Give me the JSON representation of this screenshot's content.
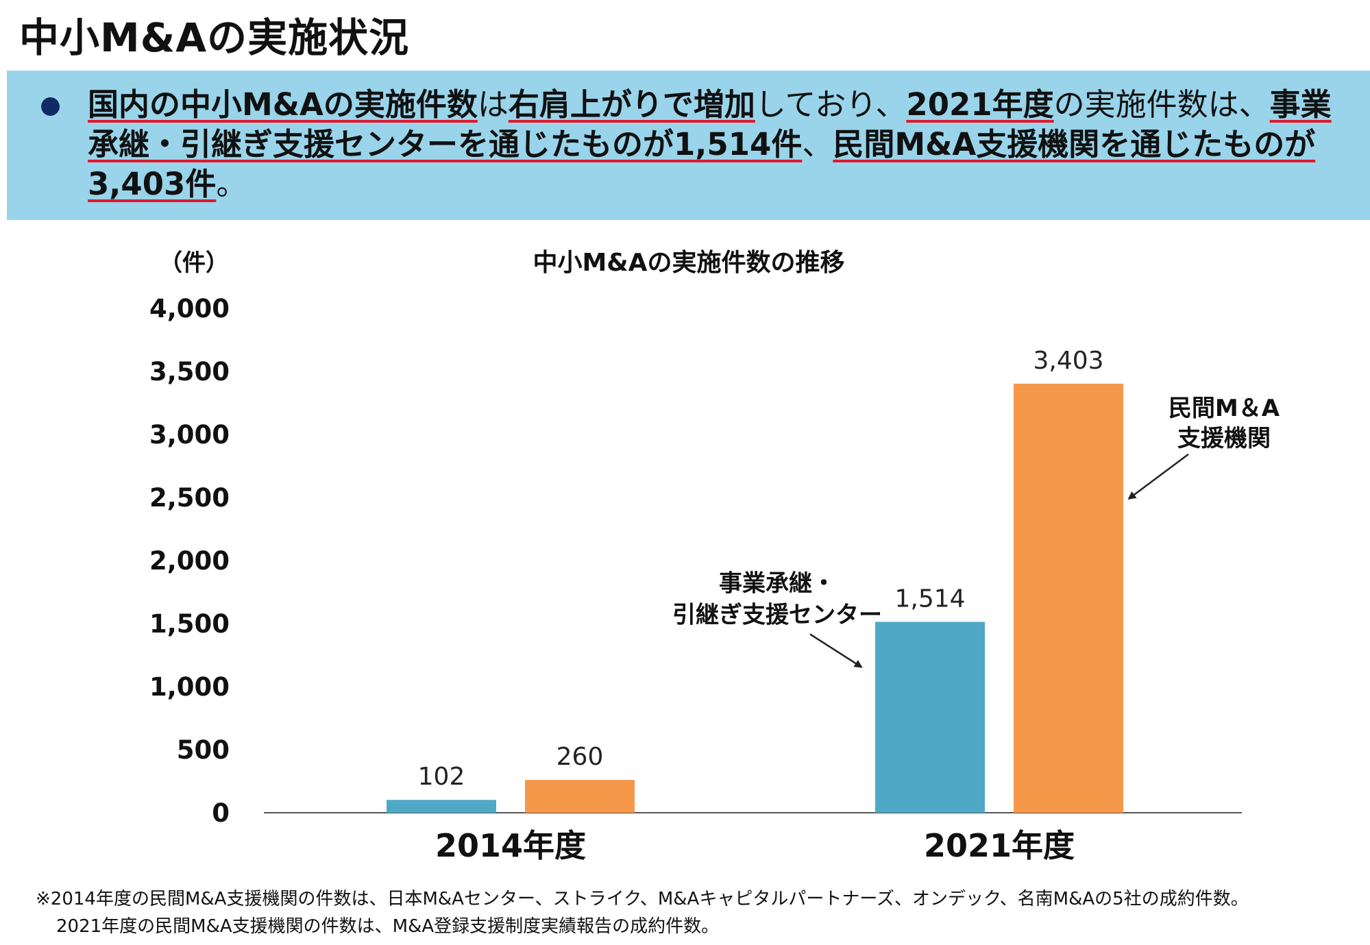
{
  "page": {
    "title": "中小M&Aの実施状況"
  },
  "summary": {
    "parts": [
      {
        "text": "国内の中小M&Aの実施件数",
        "emphasis": true
      },
      {
        "text": "は",
        "emphasis": false
      },
      {
        "text": "右肩上がりで増加",
        "emphasis": true
      },
      {
        "text": "しており、",
        "emphasis": false
      },
      {
        "text": "2021年度",
        "emphasis": true
      },
      {
        "text": "の実施件数は、",
        "emphasis": false
      },
      {
        "text": "事業承継・引継ぎ支援センターを通じたものが1,514件",
        "emphasis": true
      },
      {
        "text": "、",
        "emphasis": false
      },
      {
        "text": "民間M&A支援機関を通じたものが3,403件",
        "emphasis": true
      },
      {
        "text": "。",
        "emphasis": false
      }
    ]
  },
  "chart_data": {
    "type": "bar",
    "title": "中小M&Aの実施件数の推移",
    "ylabel": "（件）",
    "ylim": [
      0,
      4000
    ],
    "yticks": [
      0,
      500,
      1000,
      1500,
      2000,
      2500,
      3000,
      3500,
      4000
    ],
    "ytick_labels": [
      "0",
      "500",
      "1,000",
      "1,500",
      "2,000",
      "2,500",
      "3,000",
      "3,500",
      "4,000"
    ],
    "categories": [
      "2014年度",
      "2021年度"
    ],
    "series": [
      {
        "name": "事業承継・引継ぎ支援センター",
        "color": "#4fa9c6",
        "values": [
          102,
          1514
        ],
        "labels": [
          "102",
          "1,514"
        ]
      },
      {
        "name": "民間M&A支援機関",
        "color": "#f59849",
        "values": [
          260,
          3403
        ],
        "labels": [
          "260",
          "3,403"
        ]
      }
    ],
    "annotations": [
      {
        "series": 0,
        "lines": [
          "事業承継・",
          "引継ぎ支援センター"
        ]
      },
      {
        "series": 1,
        "lines": [
          "民間M＆A",
          "支援機関"
        ]
      }
    ]
  },
  "footnote": {
    "line1": "※2014年度の民間M&A支援機関の件数は、日本M&Aセンター、ストライク、M&Aキャピタルパートナーズ、オンデック、名南M&Aの5社の成約件数。",
    "line2": "2021年度の民間M&A支援機関の件数は、M&A登録支援制度実績報告の成約件数。"
  }
}
